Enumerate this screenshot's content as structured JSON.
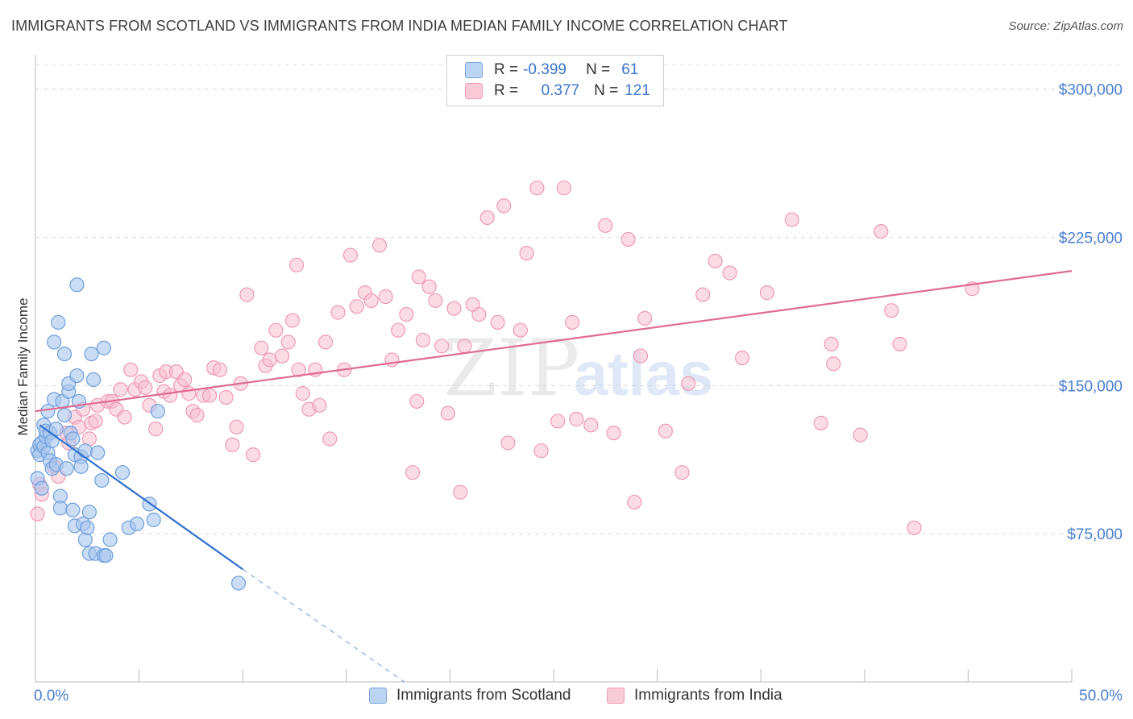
{
  "title": "IMMIGRANTS FROM SCOTLAND VS IMMIGRANTS FROM INDIA MEDIAN FAMILY INCOME CORRELATION CHART",
  "source": "Source: ZipAtlas.com",
  "watermark": {
    "zip": "ZIP",
    "atlas": "atlas"
  },
  "legend": {
    "scotland": {
      "r_label": "R =",
      "r_value": "-0.399",
      "n_label": "N =",
      "n_value": "61"
    },
    "india": {
      "r_label": "R =",
      "r_value": "0.377",
      "n_label": "N =",
      "n_value": "121"
    }
  },
  "bottom_legend": {
    "scotland": "Immigrants from Scotland",
    "india": "Immigrants from India"
  },
  "colors": {
    "scotland_fill": "#a9c7ee",
    "scotland_stroke": "#6f9fdc",
    "scotland_line": "#2f6fce",
    "india_fill": "#f7bfd0",
    "india_stroke": "#ee9ab5",
    "india_line": "#e06a93",
    "tick_label": "#4a7fd0",
    "grid": "#dcdcdc"
  },
  "chart_data": {
    "type": "scatter",
    "xlabel": "",
    "ylabel": "Median Family Income",
    "xlim": [
      0,
      50
    ],
    "ylim": [
      0,
      312500
    ],
    "x_tick_labels": {
      "left": "0.0%",
      "right": "50.0%"
    },
    "y_ticks": [
      {
        "value": 75000,
        "label": "$75,000"
      },
      {
        "value": 150000,
        "label": "$150,000"
      },
      {
        "value": 225000,
        "label": "$225,000"
      },
      {
        "value": 300000,
        "label": "$300,000"
      }
    ],
    "grid": true,
    "series": [
      {
        "name": "Immigrants from Scotland",
        "trend": {
          "x0": 0.2,
          "y0": 130000,
          "x1": 10.0,
          "y1": 57000,
          "dash_x1": 17.8,
          "dash_y1": 0
        },
        "points": [
          [
            0.1,
            103000
          ],
          [
            0.1,
            117000
          ],
          [
            0.2,
            120000
          ],
          [
            0.2,
            115000
          ],
          [
            0.3,
            121000
          ],
          [
            0.3,
            98000
          ],
          [
            0.4,
            119000
          ],
          [
            0.4,
            130000
          ],
          [
            0.5,
            124000
          ],
          [
            0.5,
            127000
          ],
          [
            0.6,
            116000
          ],
          [
            0.6,
            137000
          ],
          [
            0.7,
            112000
          ],
          [
            0.7,
            126000
          ],
          [
            0.8,
            108000
          ],
          [
            0.8,
            122000
          ],
          [
            0.9,
            143000
          ],
          [
            0.9,
            172000
          ],
          [
            1.0,
            110000
          ],
          [
            1.0,
            128000
          ],
          [
            1.1,
            182000
          ],
          [
            1.2,
            94000
          ],
          [
            1.2,
            88000
          ],
          [
            1.3,
            142000
          ],
          [
            1.4,
            166000
          ],
          [
            1.4,
            135000
          ],
          [
            1.5,
            108000
          ],
          [
            1.6,
            147000
          ],
          [
            1.6,
            151000
          ],
          [
            1.7,
            126000
          ],
          [
            1.8,
            87000
          ],
          [
            1.8,
            123000
          ],
          [
            1.9,
            79000
          ],
          [
            1.9,
            115000
          ],
          [
            2.0,
            201000
          ],
          [
            2.0,
            155000
          ],
          [
            2.1,
            142000
          ],
          [
            2.2,
            114000
          ],
          [
            2.2,
            109000
          ],
          [
            2.3,
            80000
          ],
          [
            2.4,
            72000
          ],
          [
            2.4,
            117000
          ],
          [
            2.5,
            78000
          ],
          [
            2.6,
            86000
          ],
          [
            2.6,
            65000
          ],
          [
            2.7,
            166000
          ],
          [
            2.8,
            153000
          ],
          [
            2.9,
            65000
          ],
          [
            3.0,
            116000
          ],
          [
            3.2,
            102000
          ],
          [
            3.3,
            64000
          ],
          [
            3.3,
            169000
          ],
          [
            3.4,
            64000
          ],
          [
            3.6,
            72000
          ],
          [
            4.2,
            106000
          ],
          [
            4.5,
            78000
          ],
          [
            4.9,
            80000
          ],
          [
            5.5,
            90000
          ],
          [
            5.7,
            82000
          ],
          [
            5.9,
            137000
          ],
          [
            9.8,
            50000
          ]
        ]
      },
      {
        "name": "Immigrants from India",
        "trend": {
          "x0": 0,
          "y0": 137000,
          "x1": 50,
          "y1": 208000
        },
        "points": [
          [
            0.1,
            85000
          ],
          [
            0.2,
            100000
          ],
          [
            0.3,
            95000
          ],
          [
            0.9,
            109000
          ],
          [
            1.1,
            104000
          ],
          [
            1.5,
            126000
          ],
          [
            1.6,
            121000
          ],
          [
            1.9,
            134000
          ],
          [
            2.1,
            129000
          ],
          [
            2.3,
            138000
          ],
          [
            2.6,
            123000
          ],
          [
            2.7,
            131000
          ],
          [
            2.9,
            132000
          ],
          [
            3.0,
            140000
          ],
          [
            3.5,
            142000
          ],
          [
            3.7,
            142000
          ],
          [
            3.9,
            138000
          ],
          [
            4.1,
            148000
          ],
          [
            4.3,
            134000
          ],
          [
            4.6,
            158000
          ],
          [
            4.8,
            148000
          ],
          [
            5.1,
            152000
          ],
          [
            5.3,
            149000
          ],
          [
            5.5,
            140000
          ],
          [
            5.8,
            128000
          ],
          [
            6.0,
            155000
          ],
          [
            6.2,
            147000
          ],
          [
            6.3,
            157000
          ],
          [
            6.5,
            145000
          ],
          [
            6.8,
            157000
          ],
          [
            7.0,
            150000
          ],
          [
            7.2,
            153000
          ],
          [
            7.4,
            146000
          ],
          [
            7.6,
            137000
          ],
          [
            7.8,
            135000
          ],
          [
            8.1,
            145000
          ],
          [
            8.4,
            145000
          ],
          [
            8.6,
            159000
          ],
          [
            8.9,
            158000
          ],
          [
            9.2,
            144000
          ],
          [
            9.5,
            120000
          ],
          [
            9.7,
            129000
          ],
          [
            9.9,
            151000
          ],
          [
            10.2,
            196000
          ],
          [
            10.5,
            115000
          ],
          [
            10.9,
            169000
          ],
          [
            11.1,
            160000
          ],
          [
            11.3,
            163000
          ],
          [
            11.6,
            178000
          ],
          [
            11.9,
            165000
          ],
          [
            12.2,
            172000
          ],
          [
            12.4,
            183000
          ],
          [
            12.7,
            158000
          ],
          [
            12.9,
            146000
          ],
          [
            12.6,
            211000
          ],
          [
            13.2,
            138000
          ],
          [
            13.5,
            158000
          ],
          [
            13.7,
            140000
          ],
          [
            14.0,
            172000
          ],
          [
            14.2,
            123000
          ],
          [
            14.6,
            187000
          ],
          [
            14.9,
            158000
          ],
          [
            15.2,
            216000
          ],
          [
            15.5,
            190000
          ],
          [
            15.9,
            197000
          ],
          [
            16.2,
            193000
          ],
          [
            16.6,
            221000
          ],
          [
            16.9,
            195000
          ],
          [
            17.2,
            163000
          ],
          [
            17.5,
            178000
          ],
          [
            17.9,
            186000
          ],
          [
            18.2,
            106000
          ],
          [
            18.4,
            142000
          ],
          [
            18.5,
            205000
          ],
          [
            18.7,
            173000
          ],
          [
            19.0,
            200000
          ],
          [
            19.3,
            193000
          ],
          [
            19.6,
            170000
          ],
          [
            19.9,
            136000
          ],
          [
            20.2,
            189000
          ],
          [
            20.5,
            96000
          ],
          [
            20.7,
            170000
          ],
          [
            21.1,
            191000
          ],
          [
            21.4,
            186000
          ],
          [
            21.8,
            235000
          ],
          [
            22.3,
            182000
          ],
          [
            22.6,
            241000
          ],
          [
            22.8,
            121000
          ],
          [
            23.4,
            178000
          ],
          [
            23.7,
            217000
          ],
          [
            24.2,
            250000
          ],
          [
            24.4,
            117000
          ],
          [
            25.2,
            132000
          ],
          [
            25.5,
            250000
          ],
          [
            25.9,
            182000
          ],
          [
            26.1,
            133000
          ],
          [
            26.8,
            130000
          ],
          [
            27.5,
            231000
          ],
          [
            27.9,
            126000
          ],
          [
            28.6,
            224000
          ],
          [
            28.9,
            91000
          ],
          [
            29.2,
            165000
          ],
          [
            29.4,
            184000
          ],
          [
            30.4,
            127000
          ],
          [
            31.2,
            106000
          ],
          [
            31.5,
            151000
          ],
          [
            32.2,
            196000
          ],
          [
            32.8,
            213000
          ],
          [
            33.5,
            207000
          ],
          [
            34.1,
            164000
          ],
          [
            35.3,
            197000
          ],
          [
            36.5,
            234000
          ],
          [
            37.9,
            131000
          ],
          [
            38.4,
            171000
          ],
          [
            38.5,
            161000
          ],
          [
            39.8,
            125000
          ],
          [
            40.8,
            228000
          ],
          [
            41.3,
            188000
          ],
          [
            41.7,
            171000
          ],
          [
            42.4,
            78000
          ],
          [
            45.2,
            199000
          ]
        ]
      }
    ]
  }
}
